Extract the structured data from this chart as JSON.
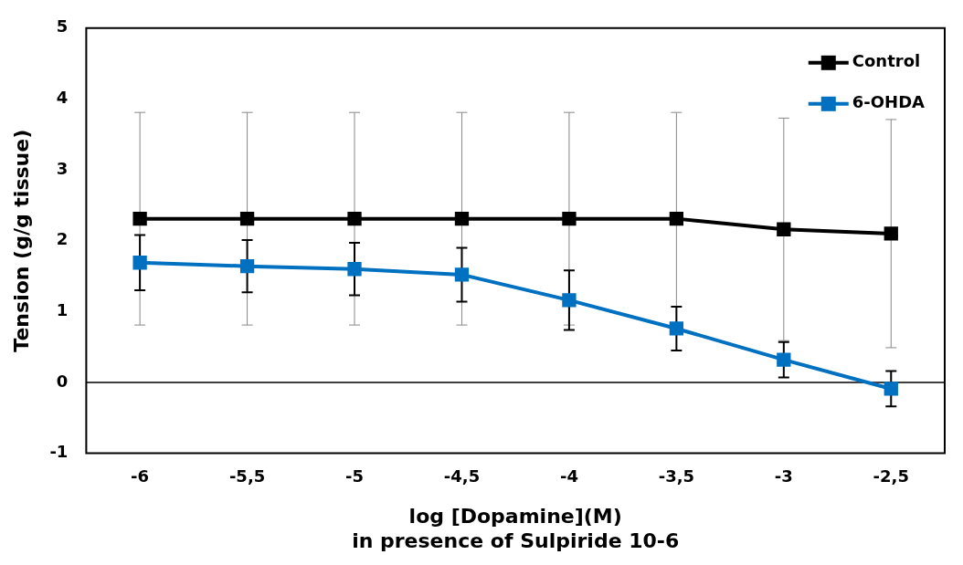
{
  "chart_data": {
    "type": "line",
    "xlabel": "log [Dopamine](M)\nin presence of Sulpiride 10-6",
    "ylabel": "Tension (g/g tissue)",
    "categories": [
      "-6",
      "-5,5",
      "-5",
      "-4,5",
      "-4",
      "-3,5",
      "-3",
      "-2,5"
    ],
    "series": [
      {
        "name": "Control",
        "color": "#000000",
        "values": [
          2.31,
          2.31,
          2.31,
          2.31,
          2.31,
          2.31,
          2.16,
          2.1
        ],
        "errors": [
          1.5,
          1.5,
          1.5,
          1.5,
          1.5,
          1.5,
          1.57,
          1.61
        ]
      },
      {
        "name": "6-OHDA",
        "color": "#0070c0",
        "values": [
          1.69,
          1.64,
          1.6,
          1.52,
          1.16,
          0.76,
          0.32,
          -0.09
        ],
        "errors": [
          0.39,
          0.37,
          0.37,
          0.38,
          0.42,
          0.31,
          0.25,
          0.25
        ]
      }
    ],
    "ylim": [
      -1,
      5
    ],
    "yticks": [
      -1,
      0,
      1,
      2,
      3,
      4,
      5
    ],
    "grid": false,
    "legend": "top right",
    "marker": "square",
    "line_style": "solid",
    "ref_lines": [
      {
        "axis": "y",
        "value": 0
      }
    ]
  }
}
